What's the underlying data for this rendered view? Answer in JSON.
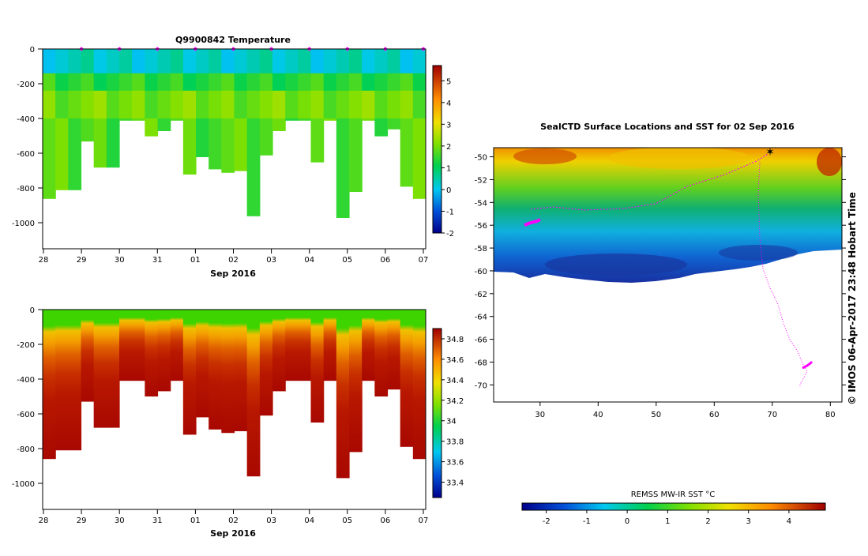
{
  "chart_data": [
    {
      "type": "heatmap",
      "title": "Q9900842  Temperature",
      "xlabel": "Sep 2016",
      "x_ticks": [
        "28",
        "29",
        "30",
        "31",
        "01",
        "02",
        "03",
        "04",
        "05",
        "06",
        "07"
      ],
      "y_ticks": [
        "0",
        "-200",
        "-400",
        "-600",
        "-800",
        "-1000"
      ],
      "ylim": [
        -1150,
        0
      ],
      "colorbar_ticks": [
        "-2",
        "-1",
        "0",
        "1",
        "2",
        "3",
        "4",
        "5"
      ],
      "colorbar_range": [
        -2,
        5.7
      ],
      "profile_depths": [
        860,
        810,
        810,
        530,
        680,
        680,
        410,
        410,
        500,
        470,
        410,
        720,
        620,
        690,
        710,
        700,
        960,
        610,
        470,
        410,
        410,
        650,
        410,
        970,
        820,
        410,
        500,
        460,
        790,
        860
      ],
      "bands": [
        {
          "top": 0,
          "bottom": 140,
          "value": 0.3
        },
        {
          "top": 140,
          "bottom": 240,
          "value": 1.4
        },
        {
          "top": 240,
          "bottom": 400,
          "value": 2.0
        },
        {
          "top": 400,
          "bottom": 1000,
          "value": 1.7
        }
      ],
      "markers_days": [
        "29",
        "30",
        "31",
        "01",
        "02",
        "03",
        "04",
        "05",
        "06",
        "07"
      ]
    },
    {
      "type": "heatmap",
      "title": "",
      "xlabel": "Sep 2016",
      "x_ticks": [
        "28",
        "29",
        "30",
        "31",
        "01",
        "02",
        "03",
        "04",
        "05",
        "06",
        "07"
      ],
      "y_ticks": [
        "0",
        "-200",
        "-400",
        "-600",
        "-800",
        "-1000"
      ],
      "ylim": [
        -1150,
        0
      ],
      "colorbar_ticks": [
        "33.4",
        "33.6",
        "33.8",
        "34",
        "34.2",
        "34.4",
        "34.6",
        "34.8"
      ],
      "colorbar_range": [
        33.25,
        34.9
      ]
    },
    {
      "type": "heatmap",
      "title": "SealCTD Surface Locations and SST for 02 Sep 2016",
      "x_ticks": [
        "30",
        "40",
        "50",
        "60",
        "70",
        "80"
      ],
      "y_ticks": [
        "-50",
        "-52",
        "-54",
        "-56",
        "-58",
        "-60",
        "-62",
        "-64",
        "-66",
        "-68",
        "-70"
      ],
      "xlim": [
        22,
        82
      ],
      "ylim": [
        -71.5,
        -49.2
      ],
      "colorbar_label": "REMSS MW-IR SST °C",
      "colorbar_ticks": [
        "-2",
        "-1",
        "0",
        "1",
        "2",
        "3",
        "4"
      ],
      "colorbar_range": [
        -2.6,
        4.9
      ]
    }
  ],
  "credit": "© IMOS 06-Apr-2017 23:48 Hobart Time",
  "colors": {
    "marker": "#ff00ff",
    "axis": "#000000"
  }
}
